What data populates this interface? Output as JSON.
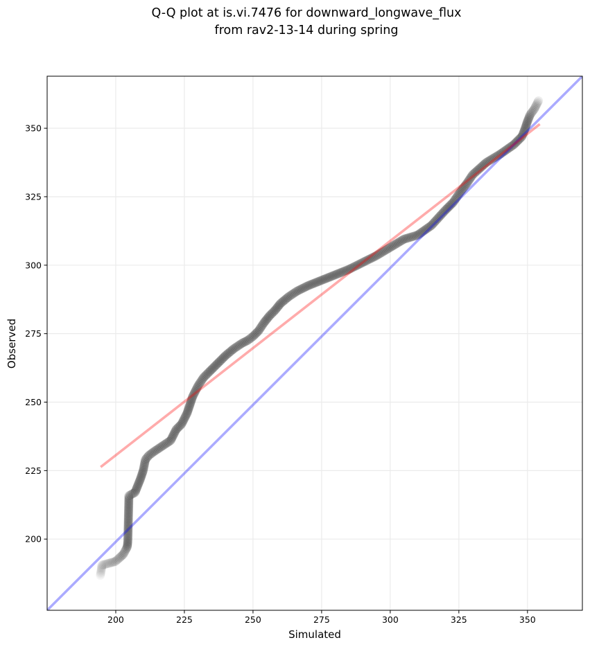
{
  "chart_data": {
    "type": "scatter",
    "title": [
      "Q-Q plot at is.vi.7476 for downward_longwave_flux",
      "from rav2-13-14 during spring"
    ],
    "xlabel": "Simulated",
    "ylabel": "Observed",
    "xlim": [
      175,
      370
    ],
    "ylim": [
      174,
      369
    ],
    "xticks": [
      200,
      225,
      250,
      275,
      300,
      325,
      350
    ],
    "yticks": [
      200,
      225,
      250,
      275,
      300,
      325,
      350
    ],
    "grid": true,
    "reference_line": {
      "name": "1:1 line",
      "color": "#aaaaff",
      "x": [
        175,
        370
      ],
      "y": [
        174,
        369
      ]
    },
    "fit_line": {
      "name": "fit line",
      "color": "#f7a8a8",
      "x": [
        194.5,
        354.5
      ],
      "y": [
        226.3,
        351.5
      ]
    },
    "quantile_curve": {
      "comment": "(simulated, observed) quantile pairs",
      "x": [
        194.4,
        195.0,
        199.8,
        201.2,
        202.8,
        204.2,
        204.4,
        204.8,
        206.0,
        207.0,
        208.0,
        209.0,
        210.0,
        210.8,
        212.0,
        214.0,
        217.0,
        220.0,
        222.0,
        224.0,
        225.0,
        226.0,
        227.0,
        228.0,
        229.0,
        230.0,
        232.0,
        234.0,
        237.0,
        240.0,
        243.0,
        246.0,
        248.0,
        250.0,
        252.0,
        254.0,
        256.0,
        258.0,
        260.0,
        263.0,
        266.0,
        270.0,
        275.0,
        280.0,
        285.0,
        290.0,
        295.0,
        300.0,
        305.0,
        310.0,
        315.0,
        320.0,
        323.0,
        325.0,
        328.0,
        330.0,
        335.0,
        340.0,
        345.0,
        348.0,
        349.0,
        350.0,
        351.0,
        352.5,
        354.0
      ],
      "y": [
        186.8,
        190.5,
        191.8,
        193.0,
        194.5,
        197.2,
        199.2,
        215.8,
        216.5,
        217.0,
        219.5,
        222.0,
        225.0,
        229.0,
        230.5,
        232.0,
        234.0,
        236.0,
        240.0,
        242.0,
        244.0,
        246.0,
        249.0,
        252.0,
        254.0,
        256.0,
        259.0,
        261.0,
        264.0,
        267.0,
        269.5,
        271.5,
        272.5,
        274.0,
        276.0,
        279.0,
        281.5,
        283.5,
        286.0,
        288.5,
        290.5,
        292.5,
        294.5,
        296.5,
        298.5,
        301.0,
        303.5,
        306.5,
        309.5,
        311.0,
        314.5,
        320.0,
        323.0,
        326.0,
        330.0,
        333.0,
        337.5,
        340.5,
        344.0,
        347.0,
        349.5,
        352.5,
        355.0,
        357.0,
        360.0
      ]
    }
  }
}
